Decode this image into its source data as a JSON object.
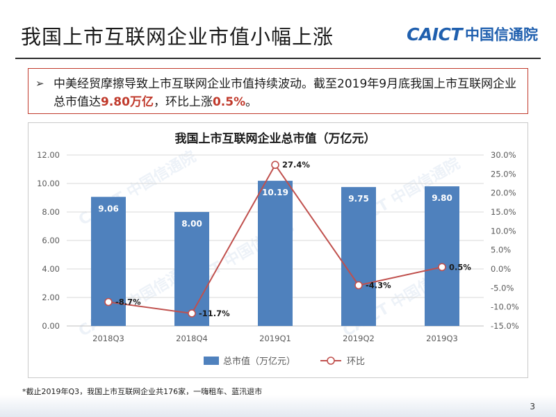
{
  "page": {
    "title": "我国上市互联网企业市值小幅上涨",
    "logo_mark": "CAICT",
    "logo_cn": "中国信通院",
    "callout": {
      "arrow": "➢",
      "text_part1": "中美经贸摩擦导致上市互联网企业市值持续波动。截至2019年9月底我国上市互联网企业总市值达",
      "highlight1": "9.80万亿",
      "text_part2": "，环比上涨",
      "highlight2": "0.5%",
      "text_part3": "。"
    },
    "footnote": "*截止2019年Q3，我国上市互联网企业共176家，一嗨租车、蓝汛退市",
    "page_number": "3"
  },
  "chart_data": {
    "type": "bar",
    "title": "我国上市互联网企业总市值（万亿元）",
    "categories": [
      "2018Q3",
      "2018Q4",
      "2019Q1",
      "2019Q2",
      "2019Q3"
    ],
    "series": [
      {
        "name": "总市值（万亿元）",
        "type": "bar",
        "axis": "left",
        "color": "#4f81bd",
        "values": [
          9.06,
          8.0,
          10.19,
          9.75,
          9.8
        ],
        "labels": [
          "9.06",
          "8.00",
          "10.19",
          "9.75",
          "9.80"
        ]
      },
      {
        "name": "环比",
        "type": "line",
        "axis": "right",
        "color": "#c0504d",
        "values": [
          -8.7,
          -11.7,
          27.4,
          -4.3,
          0.5
        ],
        "labels": [
          "-8.7%",
          "-11.7%",
          "27.4%",
          "-4.3%",
          "0.5%"
        ]
      }
    ],
    "left_axis": {
      "ylim": [
        0,
        12
      ],
      "ticks": [
        0,
        2,
        4,
        6,
        8,
        10,
        12
      ],
      "tick_labels": [
        "0.00",
        "2.00",
        "4.00",
        "6.00",
        "8.00",
        "10.00",
        "12.00"
      ]
    },
    "right_axis": {
      "ylim": [
        -15,
        30
      ],
      "ticks": [
        -15,
        -10,
        -5,
        0,
        5,
        10,
        15,
        20,
        25,
        30
      ],
      "tick_labels": [
        "-15.0%",
        "-10.0%",
        "-5.0%",
        "0.0%",
        "5.0%",
        "10.0%",
        "15.0%",
        "20.0%",
        "25.0%",
        "30.0%"
      ]
    },
    "grid": true,
    "legend": "bottom",
    "watermark": "CAICT 中国信通院"
  }
}
